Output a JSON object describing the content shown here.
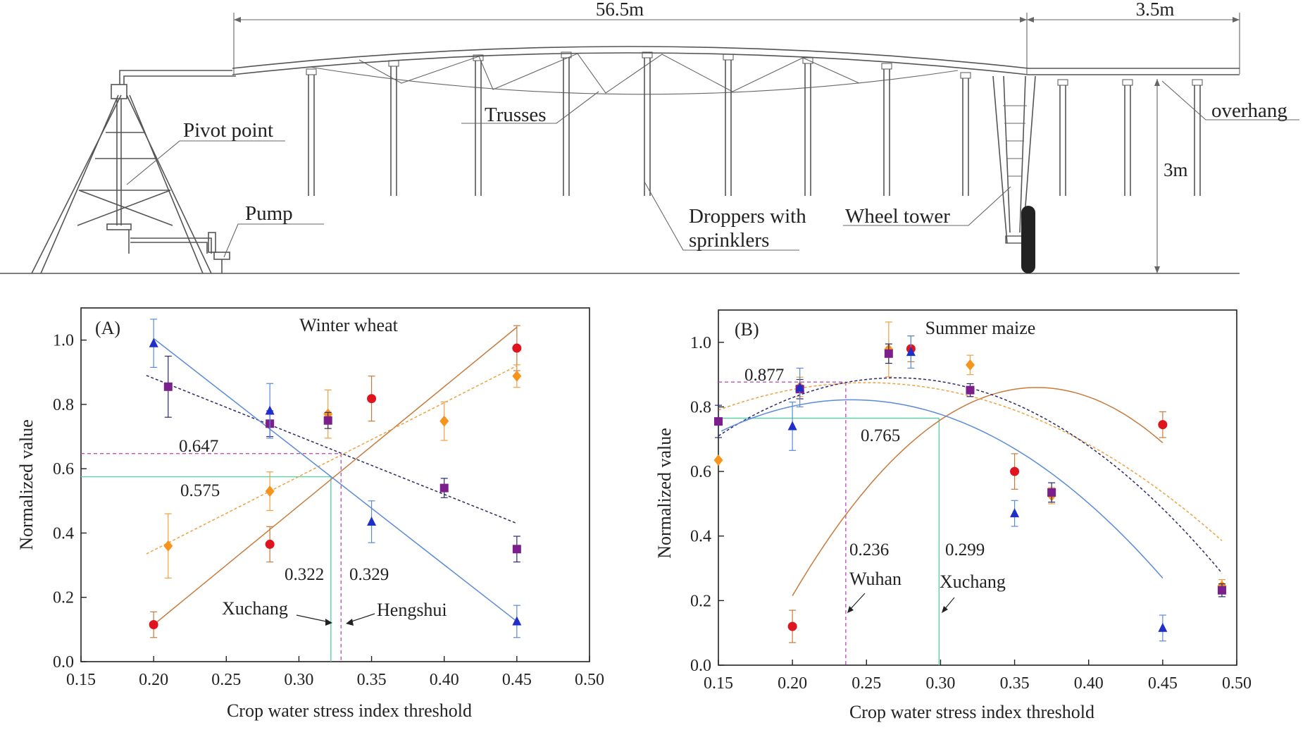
{
  "figure": {
    "diagram": {
      "span_main": "56.5m",
      "span_overhang": "3.5m",
      "height": "3m",
      "labels": {
        "pivot": "Pivot point",
        "pump": "Pump",
        "trusses": "Trusses",
        "droppers_1": "Droppers with",
        "droppers_2": "sprinklers",
        "wheel_tower": "Wheel tower",
        "overhang": "overhang"
      }
    }
  },
  "colors": {
    "red": "#e0141e",
    "orange": "#f7941d",
    "purple": "#7b1f8c",
    "blue": "#1f2fc8",
    "trend_red": "#c87a3c",
    "trend_orange": "#f0a040",
    "trend_purple": "#2a2a6a",
    "trend_blue": "#5a8ad8",
    "guide_green": "#5fcfa8",
    "guide_purple": "#c050c0"
  },
  "chart_data": [
    {
      "type": "scatter",
      "panel": "(A)",
      "title": "Winter wheat",
      "xlabel": "Crop water stress index threshold",
      "ylabel": "Normalized value",
      "xlim": [
        0.15,
        0.5
      ],
      "ylim": [
        0.0,
        1.1
      ],
      "xticks": [
        "0.15",
        "0.20",
        "0.25",
        "0.30",
        "0.35",
        "0.40",
        "0.45",
        "0.50"
      ],
      "yticks": [
        "0.0",
        "0.2",
        "0.4",
        "0.6",
        "0.8",
        "1.0"
      ],
      "series": [
        {
          "marker": "circle",
          "color": "red",
          "points": [
            [
              0.2,
              0.115,
              0.04
            ],
            [
              0.28,
              0.365,
              0.055
            ],
            [
              0.35,
              0.818,
              0.07
            ],
            [
              0.45,
              0.975,
              0.07
            ]
          ],
          "trend": {
            "kind": "linear",
            "from": [
              0.2,
              0.115
            ],
            "to": [
              0.45,
              1.04
            ],
            "dash": false
          }
        },
        {
          "marker": "diamond",
          "color": "orange",
          "points": [
            [
              0.21,
              0.36,
              0.1
            ],
            [
              0.28,
              0.53,
              0.06
            ],
            [
              0.32,
              0.77,
              0.075
            ],
            [
              0.4,
              0.748,
              0.06
            ],
            [
              0.45,
              0.888,
              0.035
            ]
          ],
          "trend": {
            "kind": "linear",
            "from": [
              0.195,
              0.335
            ],
            "to": [
              0.45,
              0.92
            ],
            "dash": true
          }
        },
        {
          "marker": "square",
          "color": "purple",
          "points": [
            [
              0.21,
              0.855,
              0.095
            ],
            [
              0.28,
              0.74,
              0.04
            ],
            [
              0.32,
              0.75,
              0.025
            ],
            [
              0.4,
              0.54,
              0.03
            ],
            [
              0.45,
              0.35,
              0.04
            ]
          ],
          "trend": {
            "kind": "linear",
            "from": [
              0.195,
              0.89
            ],
            "to": [
              0.45,
              0.43
            ],
            "dash": true
          }
        },
        {
          "marker": "triangle",
          "color": "blue",
          "points": [
            [
              0.2,
              0.99,
              0.075
            ],
            [
              0.28,
              0.78,
              0.085
            ],
            [
              0.35,
              0.435,
              0.065
            ],
            [
              0.45,
              0.125,
              0.05
            ]
          ],
          "trend": {
            "kind": "linear",
            "from": [
              0.2,
              1.005
            ],
            "to": [
              0.45,
              0.125
            ],
            "dash": false
          }
        }
      ],
      "annotations": {
        "v_0647": "0.647",
        "v_0575": "0.575",
        "x_0322": "0.322",
        "x_0329": "0.329",
        "site_1": "Xuchang",
        "site_2": "Hengshui"
      },
      "guides": [
        {
          "color": "guide_purple",
          "x": 0.329,
          "y": 0.647
        },
        {
          "color": "guide_green",
          "x": 0.322,
          "y": 0.575
        }
      ]
    },
    {
      "type": "scatter",
      "panel": "(B)",
      "title": "Summer maize",
      "xlabel": "Crop water stress index threshold",
      "ylabel": "Normalized value",
      "xlim": [
        0.15,
        0.5
      ],
      "ylim": [
        0.0,
        1.1
      ],
      "xticks": [
        "0.15",
        "0.20",
        "0.25",
        "0.30",
        "0.35",
        "0.40",
        "0.45",
        "0.50"
      ],
      "yticks": [
        "0.0",
        "0.2",
        "0.4",
        "0.6",
        "0.8",
        "1.0"
      ],
      "series": [
        {
          "marker": "circle",
          "color": "red",
          "points": [
            [
              0.2,
              0.12,
              0.05
            ],
            [
              0.28,
              0.98,
              0.04
            ],
            [
              0.35,
              0.6,
              0.055
            ],
            [
              0.45,
              0.745,
              0.04
            ]
          ],
          "trend": {
            "kind": "quad",
            "vertex": [
              0.365,
              0.86
            ],
            "from": 0.2,
            "to": 0.45,
            "y0": 0.215,
            "dash": false
          }
        },
        {
          "marker": "diamond",
          "color": "orange",
          "points": [
            [
              0.15,
              0.635,
              0.0
            ],
            [
              0.205,
              0.862,
              0.03
            ],
            [
              0.265,
              0.978,
              0.085
            ],
            [
              0.32,
              0.93,
              0.03
            ],
            [
              0.375,
              0.525,
              0.025
            ],
            [
              0.49,
              0.245,
              0.02
            ]
          ],
          "trend": {
            "kind": "quad",
            "vertex": [
              0.25,
              0.875
            ],
            "from": 0.15,
            "to": 0.49,
            "y0": 0.79,
            "dash": true
          }
        },
        {
          "marker": "square",
          "color": "purple",
          "points": [
            [
              0.15,
              0.755,
              0.05
            ],
            [
              0.205,
              0.855,
              0.03
            ],
            [
              0.265,
              0.965,
              0.03
            ],
            [
              0.32,
              0.852,
              0.02
            ],
            [
              0.375,
              0.535,
              0.03
            ],
            [
              0.49,
              0.232,
              0.02
            ]
          ],
          "trend": {
            "kind": "quad",
            "vertex": [
              0.27,
              0.89
            ],
            "from": 0.15,
            "to": 0.49,
            "y0": 0.71,
            "dash": true
          }
        },
        {
          "marker": "triangle",
          "color": "blue",
          "points": [
            [
              0.2,
              0.74,
              0.075
            ],
            [
              0.205,
              0.86,
              0.06
            ],
            [
              0.28,
              0.97,
              0.05
            ],
            [
              0.35,
              0.47,
              0.04
            ],
            [
              0.45,
              0.115,
              0.04
            ]
          ],
          "trend": {
            "kind": "quad",
            "vertex": [
              0.24,
              0.822
            ],
            "from": 0.152,
            "to": 0.45,
            "y0": 0.725,
            "dash": false
          }
        }
      ],
      "annotations": {
        "v_0877": "0.877",
        "v_0765": "0.765",
        "x_0236": "0.236",
        "x_0299": "0.299",
        "site_1": "Wuhan",
        "site_2": "Xuchang"
      },
      "guides": [
        {
          "color": "guide_purple",
          "x": 0.236,
          "y": 0.877
        },
        {
          "color": "guide_green",
          "x": 0.299,
          "y": 0.765
        }
      ]
    }
  ]
}
